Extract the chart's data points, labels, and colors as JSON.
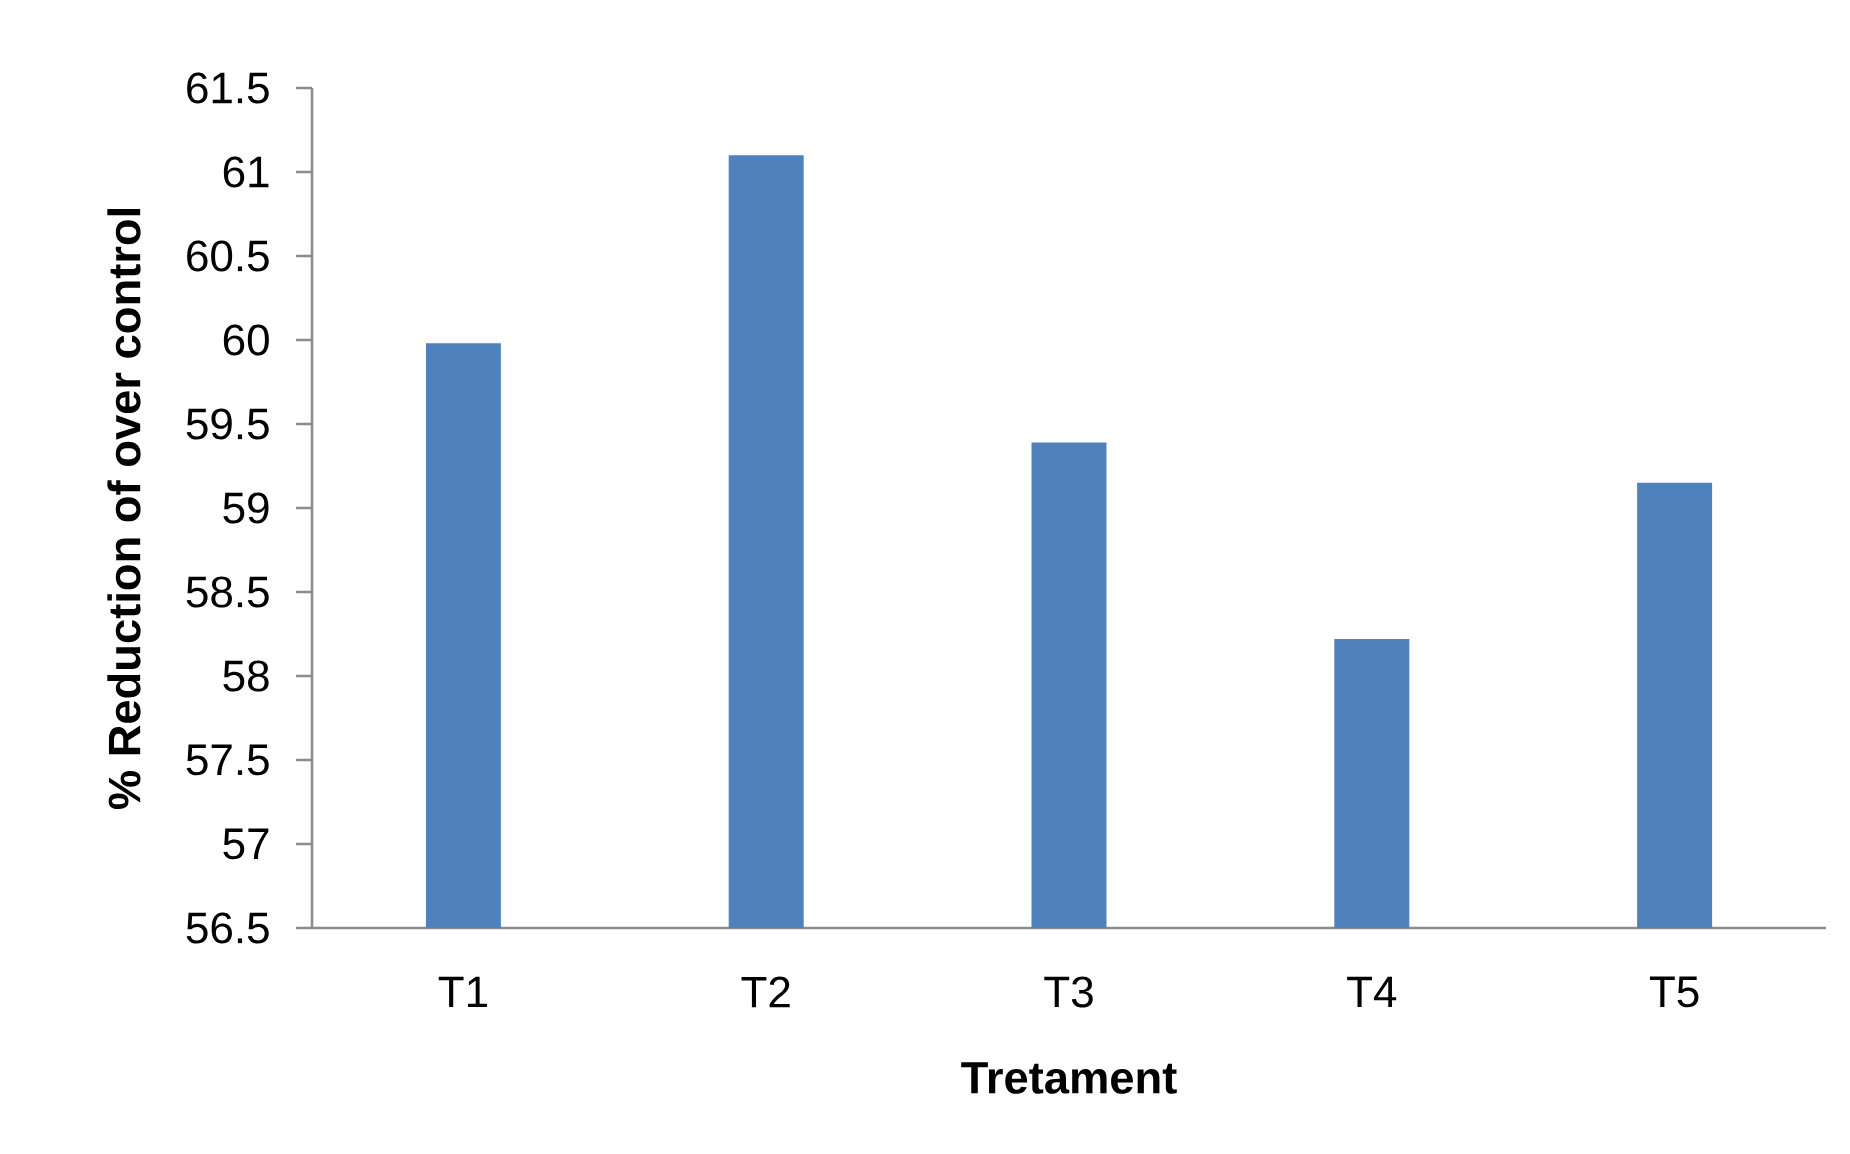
{
  "chart_data": {
    "type": "bar",
    "xlabel": "Tretament",
    "ylabel": "% Reduction of over control",
    "categories": [
      "T1",
      "T2",
      "T3",
      "T4",
      "T5"
    ],
    "values": [
      59.98,
      61.1,
      59.39,
      58.22,
      59.15
    ],
    "color": "#4f81bd",
    "ylim": [
      56.5,
      61.5
    ],
    "yticks": [
      56.5,
      57,
      57.5,
      58,
      58.5,
      59,
      59.5,
      60,
      60.5,
      61,
      61.5
    ]
  }
}
